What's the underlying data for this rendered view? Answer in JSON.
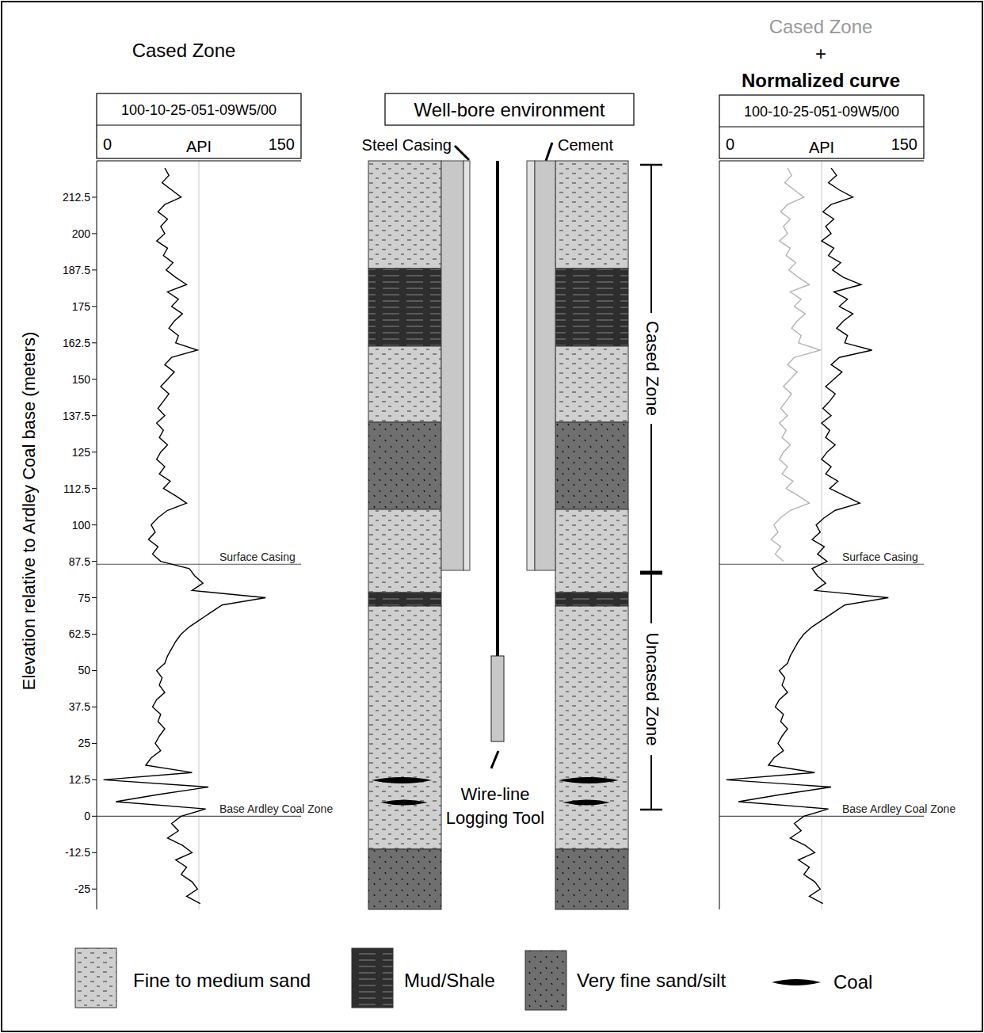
{
  "chart_data": [
    {
      "type": "line",
      "title": "Cased Zone",
      "well": "100-10-25-051-09W5/00",
      "x_label": "API",
      "y_label": "Elevation relative to Ardley Coal base (meters)",
      "xlim": [
        0,
        150
      ],
      "xticks": [
        0,
        150
      ],
      "ylim": [
        -32,
        225
      ],
      "yticks": [
        -25,
        -12.5,
        0,
        12.5,
        25,
        37.5,
        50,
        62.5,
        75,
        87.5,
        100,
        112.5,
        125,
        137.5,
        150,
        162.5,
        175,
        187.5,
        200,
        212.5
      ],
      "reference_x": 75,
      "annotations": [
        {
          "text": "Surface Casing",
          "y": 86.5
        },
        {
          "text": "Base Ardley Coal Zone",
          "y": 0
        }
      ],
      "y": [
        222.5,
        220,
        217.5,
        215,
        212.5,
        210,
        207.5,
        205,
        202.5,
        200,
        197.5,
        195,
        192.5,
        190,
        187.5,
        185,
        182.5,
        180,
        177.5,
        175,
        172.5,
        170,
        167.5,
        165,
        162.5,
        160,
        157.5,
        155,
        152.5,
        150,
        147.5,
        145,
        142.5,
        140,
        137.5,
        135,
        132.5,
        130,
        127.5,
        125,
        122.5,
        120,
        117.5,
        115,
        112.5,
        110,
        107.5,
        105,
        102.5,
        100,
        97.5,
        95,
        92.5,
        90,
        87.5,
        85,
        82.5,
        80,
        77.5,
        75,
        72.5,
        70,
        67.5,
        65,
        62.5,
        60,
        57.5,
        55,
        52.5,
        50,
        47.5,
        45,
        42.5,
        40,
        37.5,
        35,
        32.5,
        30,
        27.5,
        25,
        22.5,
        20,
        17.5,
        15,
        12.5,
        10,
        7.5,
        5,
        2.5,
        0,
        -2.5,
        -5,
        -7.5,
        -10,
        -12.5,
        -15,
        -17.5,
        -20,
        -22.5,
        -25,
        -27.5,
        -30
      ],
      "series": [
        {
          "color": "#000000",
          "values": [
            50,
            53,
            48,
            55,
            62,
            50,
            45,
            52,
            47,
            50,
            44,
            52,
            49,
            56,
            51,
            58,
            66,
            52,
            60,
            55,
            63,
            57,
            53,
            60,
            58,
            74,
            55,
            50,
            57,
            52,
            47,
            53,
            49,
            45,
            50,
            44,
            49,
            46,
            52,
            47,
            44,
            50,
            46,
            54,
            49,
            58,
            66,
            52,
            45,
            40,
            43,
            38,
            45,
            41,
            47,
            68,
            72,
            78,
            70,
            124,
            92,
            84,
            76,
            68,
            62,
            58,
            55,
            52,
            50,
            44,
            48,
            46,
            50,
            44,
            41,
            47,
            45,
            50,
            46,
            43,
            47,
            40,
            36,
            70,
            5,
            82,
            46,
            14,
            80,
            62,
            55,
            60,
            52,
            63,
            70,
            58,
            66,
            62,
            70,
            74,
            66,
            76
          ]
        }
      ]
    },
    {
      "type": "line",
      "title": [
        "Cased Zone",
        "+",
        "Normalized curve"
      ],
      "well": "100-10-25-051-09W5/00",
      "x_label": "API",
      "xlim": [
        0,
        150
      ],
      "xticks": [
        0,
        150
      ],
      "ylim": [
        -32,
        225
      ],
      "tick_labels": "x",
      "reference_x": 75,
      "annotations": [
        {
          "text": "Surface Casing",
          "y": 86.5
        },
        {
          "text": "Base Ardley Coal Zone",
          "y": 0
        }
      ],
      "y": [
        222.5,
        220,
        217.5,
        215,
        212.5,
        210,
        207.5,
        205,
        202.5,
        200,
        197.5,
        195,
        192.5,
        190,
        187.5,
        185,
        182.5,
        180,
        177.5,
        175,
        172.5,
        170,
        167.5,
        165,
        162.5,
        160,
        157.5,
        155,
        152.5,
        150,
        147.5,
        145,
        142.5,
        140,
        137.5,
        135,
        132.5,
        130,
        127.5,
        125,
        122.5,
        120,
        117.5,
        115,
        112.5,
        110,
        107.5,
        105,
        102.5,
        100,
        97.5,
        95,
        92.5,
        90,
        87.5,
        85,
        82.5,
        80,
        77.5,
        75,
        72.5,
        70,
        67.5,
        65,
        62.5,
        60,
        57.5,
        55,
        52.5,
        50,
        47.5,
        45,
        42.5,
        40,
        37.5,
        35,
        32.5,
        30,
        27.5,
        25,
        22.5,
        20,
        17.5,
        15,
        12.5,
        10,
        7.5,
        5,
        2.5,
        0,
        -2.5,
        -5,
        -7.5,
        -10,
        -12.5,
        -15,
        -17.5,
        -20,
        -22.5,
        -25,
        -27.5,
        -30
      ],
      "series": [
        {
          "color": "#b4b4b4",
          "values": [
            50,
            53,
            48,
            55,
            62,
            50,
            45,
            52,
            47,
            50,
            44,
            52,
            49,
            56,
            51,
            58,
            66,
            52,
            60,
            55,
            63,
            57,
            53,
            60,
            58,
            74,
            55,
            50,
            57,
            52,
            47,
            53,
            49,
            45,
            50,
            44,
            49,
            46,
            52,
            47,
            44,
            50,
            46,
            54,
            49,
            58,
            66,
            52,
            45,
            40,
            43,
            38,
            45,
            41,
            47,
            null,
            null,
            null,
            null,
            null,
            null,
            null,
            null,
            null,
            null,
            null,
            null,
            null,
            null,
            null,
            null,
            null,
            null,
            null,
            null,
            null,
            null,
            null,
            null,
            null,
            null,
            null,
            null,
            null,
            null,
            null,
            null,
            null,
            null,
            null,
            null,
            null,
            null,
            null,
            null,
            null,
            null,
            null,
            null,
            null,
            null,
            null,
            null
          ]
        },
        {
          "color": "#000000",
          "values": [
            82,
            86,
            80,
            88,
            98,
            82,
            76,
            84,
            78,
            82,
            75,
            84,
            80,
            89,
            83,
            91,
            104,
            84,
            94,
            88,
            98,
            91,
            86,
            94,
            92,
            112,
            88,
            82,
            90,
            84,
            78,
            85,
            81,
            76,
            82,
            75,
            81,
            78,
            85,
            79,
            75,
            82,
            78,
            87,
            81,
            92,
            103,
            85,
            77,
            71,
            74,
            68,
            77,
            72,
            79,
            68,
            72,
            78,
            70,
            124,
            92,
            84,
            76,
            68,
            62,
            58,
            55,
            52,
            50,
            44,
            48,
            46,
            50,
            44,
            41,
            47,
            45,
            50,
            46,
            43,
            47,
            40,
            36,
            70,
            5,
            82,
            46,
            14,
            80,
            62,
            55,
            60,
            52,
            63,
            70,
            58,
            66,
            62,
            70,
            74,
            66,
            76
          ]
        }
      ]
    }
  ],
  "diagram": {
    "title": "Well-bore environment",
    "casing_label": "Steel Casing",
    "cement_label": "Cement",
    "tool_label": "Wire-line Logging Tool",
    "zones": [
      "Cased Zone",
      "Uncased Zone"
    ],
    "layers": [
      "Fine to medium sand",
      "Mud/Shale",
      "Fine to medium sand",
      "Very fine sand/silt",
      "Fine to medium sand",
      "Mud/Shale",
      "Fine to medium sand",
      "Very fine sand/silt"
    ],
    "legend": [
      "Fine to medium sand",
      "Mud/Shale",
      "Very fine sand/silt",
      "Coal"
    ]
  }
}
